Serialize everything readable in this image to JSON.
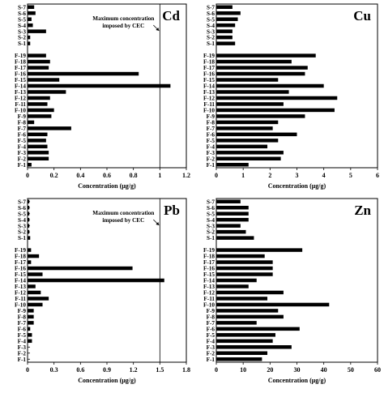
{
  "chart_data": [
    {
      "type": "bar",
      "orientation": "horizontal",
      "panel_label": "Cd",
      "categories": [
        "F-1",
        "F-2",
        "F-3",
        "F-4",
        "F-5",
        "F-6",
        "F-7",
        "F-8",
        "F-9",
        "F-10",
        "F-11",
        "F-12",
        "F-13",
        "F-14",
        "F-15",
        "F-16",
        "F-17",
        "F-18",
        "F-19",
        "",
        "S-1",
        "S-2",
        "S-3",
        "S-4",
        "S-5",
        "S-6",
        "S-7"
      ],
      "values": [
        0.03,
        0.16,
        0.16,
        0.15,
        0.14,
        0.15,
        0.33,
        0.05,
        0.18,
        0.2,
        0.15,
        0.17,
        0.29,
        1.08,
        0.24,
        0.84,
        0.16,
        0.17,
        0.14,
        null,
        0.02,
        0.02,
        0.14,
        0.04,
        0.03,
        0.06,
        0.05
      ],
      "xlabel": "Concentration (μg/g)",
      "xlim": [
        0,
        1.2
      ],
      "xticks": [
        "0",
        "0.2",
        "0.4",
        "0.6",
        "0.8",
        "1",
        "1.2"
      ],
      "reference_line": {
        "value": 1.0,
        "label_line1": "Maximum concentration",
        "label_line2": "imposed by CEC"
      }
    },
    {
      "type": "bar",
      "orientation": "horizontal",
      "panel_label": "Cu",
      "categories": [
        "F-1",
        "F-2",
        "F-3",
        "F-4",
        "F-5",
        "F-6",
        "F-7",
        "F-8",
        "F-9",
        "F-10",
        "F-11",
        "F-12",
        "F-13",
        "F-14",
        "F-15",
        "F-16",
        "F-17",
        "F-18",
        "F-19",
        "",
        "S-1",
        "S-2",
        "S-3",
        "S-4",
        "S-5",
        "S-6",
        "S-7"
      ],
      "values": [
        1.2,
        2.4,
        2.5,
        1.9,
        2.3,
        3.0,
        2.1,
        2.3,
        3.3,
        4.4,
        2.5,
        4.5,
        2.7,
        4.0,
        2.3,
        3.3,
        3.4,
        2.8,
        3.7,
        null,
        0.7,
        0.6,
        0.6,
        0.7,
        0.8,
        0.9,
        0.6
      ],
      "xlabel": "Concentration (μg/g)",
      "xlim": [
        0,
        6
      ],
      "xticks": [
        "0",
        "1",
        "2",
        "3",
        "4",
        "5",
        "6"
      ]
    },
    {
      "type": "bar",
      "orientation": "horizontal",
      "panel_label": "Pb",
      "categories": [
        "F-1",
        "F-2",
        "F-3",
        "F-4",
        "F-5",
        "F-6",
        "F-7",
        "F-8",
        "F-9",
        "F-10",
        "F-11",
        "F-12",
        "F-13",
        "F-14",
        "F-15",
        "F-16",
        "F-17",
        "F-18",
        "F-19",
        "",
        "S-1",
        "S-2",
        "S-3",
        "S-4",
        "S-5",
        "S-6",
        "S-7"
      ],
      "values": [
        0.0,
        0.0,
        0.0,
        0.05,
        0.05,
        0.03,
        0.07,
        0.07,
        0.07,
        0.17,
        0.24,
        0.15,
        0.09,
        1.55,
        0.17,
        1.19,
        0.04,
        0.13,
        0.04,
        null,
        0.03,
        0.02,
        0.02,
        0.02,
        0.02,
        0.02,
        0.02
      ],
      "xlabel": "Concentration (μg/g)",
      "xlim": [
        0,
        1.8
      ],
      "xticks": [
        "0",
        "0.3",
        "0.6",
        "0.9",
        "1.2",
        "1.5",
        "1.8"
      ],
      "reference_line": {
        "value": 1.5,
        "label_line1": "Maximum concentration",
        "label_line2": "imposed by CEC"
      }
    },
    {
      "type": "bar",
      "orientation": "horizontal",
      "panel_label": "Zn",
      "categories": [
        "F-1",
        "F-2",
        "F-3",
        "F-4",
        "F-5",
        "F-6",
        "F-7",
        "F-8",
        "F-9",
        "F-10",
        "F-11",
        "F-12",
        "F-13",
        "F-14",
        "F-15",
        "F-16",
        "F-17",
        "F-18",
        "F-19",
        "",
        "S-1",
        "S-2",
        "S-3",
        "S-4",
        "S-5",
        "S-6",
        "S-7"
      ],
      "values": [
        17,
        19,
        28,
        21,
        22,
        31,
        15,
        25,
        23,
        42,
        19,
        25,
        12,
        15,
        21,
        21,
        21,
        18,
        32,
        null,
        14,
        11,
        9,
        12,
        12,
        12,
        9
      ],
      "xlabel": "Concentration (μg/g)",
      "xlim": [
        0,
        60
      ],
      "xticks": [
        "0",
        "10",
        "20",
        "30",
        "40",
        "50",
        "60"
      ]
    }
  ]
}
